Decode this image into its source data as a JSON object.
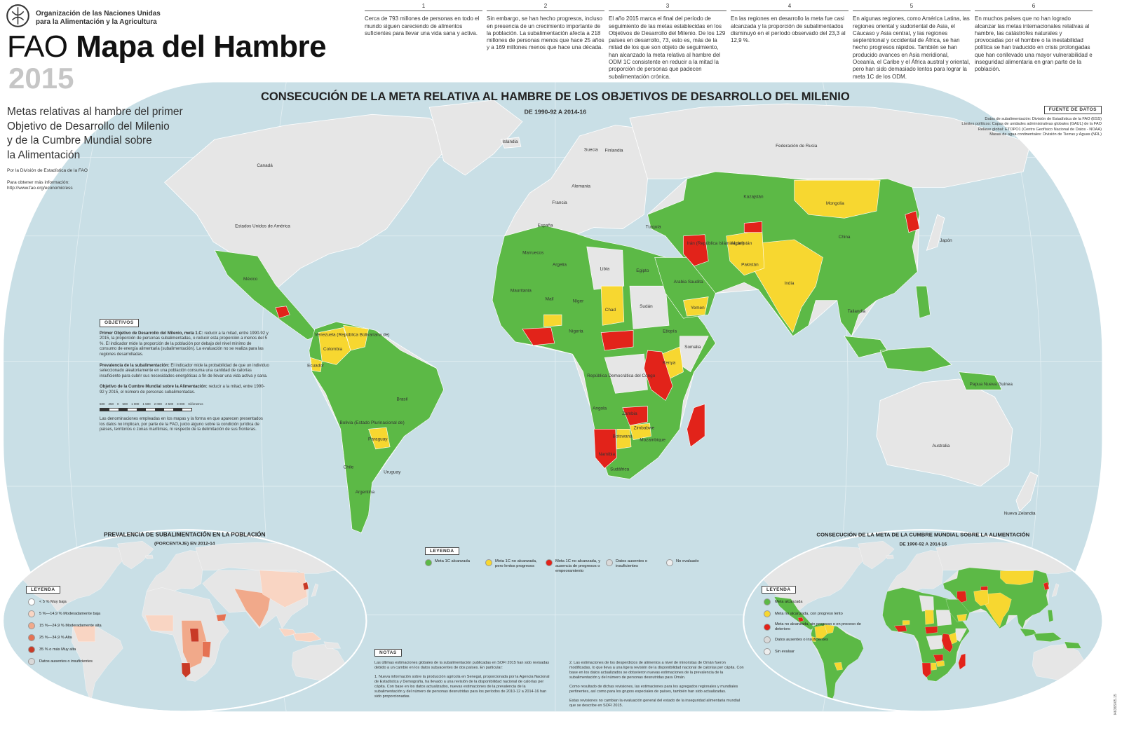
{
  "header": {
    "org_line1": "Organización de las Naciones Unidas",
    "org_line2": "para la Alimentación y la Agricultura",
    "title_prefix": "FAO",
    "title": "Mapa del Hambre",
    "year": "2015",
    "subtitle_lines": [
      "Metas relativas al hambre del primer",
      "Objetivo de Desarrollo del Milenio",
      "y de la Cumbre Mundial sobre",
      "la Alimentación"
    ],
    "by_line": "Por la División de Estadística de la FAO",
    "info_label": "Para obtener más información:",
    "info_url": "http://www.fao.org/economic/ess"
  },
  "key_points": [
    {
      "number": "1",
      "text": "Cerca de 793 millones de personas en todo el mundo siguen careciendo de alimentos suficientes para llevar una vida sana y activa."
    },
    {
      "number": "2",
      "text": "Sin embargo, se han hecho progresos, incluso en presencia de un crecimiento importante de la población. La subalimentación afecta a 218 millones de personas menos que hace 25 años y a 169 millones menos que hace una década."
    },
    {
      "number": "3",
      "text": "El año 2015 marca el final del período de seguimiento de las metas establecidas en los Objetivos de Desarrollo del Milenio. De los 129 países en desarrollo, 73, esto es, más de la mitad de los que son objeto de seguimiento, han alcanzado la meta relativa al hambre del ODM 1C consistente en reducir a la mitad la proporción de personas que padecen subalimentación crónica."
    },
    {
      "number": "4",
      "text": "En las regiones en desarrollo la meta fue casi alcanzada y la proporción de subalimentados disminuyó en el período observado del 23,3 al 12,9 %."
    },
    {
      "number": "5",
      "text": "En algunas regiones, como América Latina, las regiones oriental y sudoriental de Asia, el Cáucaso y Asia central, y las regiones septentrional y occidental de África, se han hecho progresos rápidos. También se han producido avances en Asia meridional, Oceanía, el Caribe y el África austral y oriental, pero han sido demasiado lentos para lograr la meta 1C de los ODM."
    },
    {
      "number": "6",
      "text": "En muchos países que no han logrado alcanzar las metas internacionales relativas al hambre, las catástrofes naturales y provocadas por el hombre o la inestabilidad política se han traducido en crisis prolongadas que han conllevado una mayor vulnerabilidad e inseguridad alimentaria en gran parte de la población."
    }
  ],
  "main_map": {
    "title": "CONSECUCIÓN DE LA META RELATIVA AL HAMBRE DE LOS OBJETIVOS DE DESARROLLO DEL MILENIO",
    "subtitle": "DE 1990-92 A 2014-16",
    "sources_heading": "FUENTE DE DATOS",
    "sources": [
      "Datos de subalimentación: División de Estadística de la FAO (ESS)",
      "Límites políticos: Capas de unidades administrativas globales (GAUL) de la FAO",
      "Relieve global: ETOPO1 (Centro Geofísico Nacional de Datos - NOAA)",
      "Masas de agua continentales: División de Tierras y Aguas (NRL)"
    ],
    "legend_heading": "LEYENDA",
    "legend": [
      {
        "label": "Meta 1C alcanzada",
        "color": "#5cb946"
      },
      {
        "label": "Meta 1C no alcanzada, pero lentos progresos",
        "color": "#f7d730"
      },
      {
        "label": "Meta 1C no alcanzada, y ausencia de progresos o empeoramiento",
        "color": "#e2231a"
      },
      {
        "label": "Datos ausentes o insuficientes",
        "color": "#d9d9d9"
      },
      {
        "label": "No evaluado",
        "color": "#eeeeee"
      }
    ],
    "country_labels": [
      "Canadá",
      "Estados Unidos de América",
      "México",
      "Colombia",
      "Ecuador",
      "Brasil",
      "Bolivia (Estado Plurinacional de)",
      "Paraguay",
      "Uruguay",
      "Argentina",
      "Chile",
      "Venezuela (República Bolivariana de)",
      "Islandia",
      "Suecia",
      "Finlandia",
      "Federación de Rusia",
      "Kazajstán",
      "Mongolia",
      "China",
      "India",
      "Pakistán",
      "Afganistán",
      "Turquía",
      "Irán (República Islámica del)",
      "Arabia Saudita",
      "Egipto",
      "Libia",
      "Argelia",
      "Malí",
      "Níger",
      "Chad",
      "Sudán",
      "Etiopía",
      "Nigeria",
      "Kenya",
      "República Democrática del Congo",
      "Angola",
      "Zambia",
      "Namibia",
      "Botswana",
      "Sudáfrica",
      "Mozambique",
      "Zimbabwe",
      "Australia",
      "Japón",
      "Papua Nueva Guinea",
      "Nueva Zelandia",
      "Mauritania",
      "Marruecos",
      "Yemen",
      "España",
      "Francia",
      "Alemania",
      "Somalia",
      "Tailandia"
    ]
  },
  "objectives": {
    "heading": "OBJETIVOS",
    "paragraphs": [
      {
        "term": "Primer Objetivo de Desarrollo del Milenio, meta 1.C:",
        "text": "reducir a la mitad, entre 1990-92 y 2015, la proporción de personas subalimentadas, o reducir esta proporción a menos del 5 %. El indicador mide la proporción de la población por debajo del nivel mínimo de consumo de energía alimentaria (subalimentación). La evaluación no se realiza para las regiones desarrolladas."
      },
      {
        "term": "Prevalencia de la subalimentación:",
        "text": "El indicador mide la probabilidad de que un individuo seleccionado aleatoriamente en una población consuma una cantidad de calorías insuficiente para cubrir sus necesidades energéticas a fin de llevar una vida activa y sana."
      },
      {
        "term": "Objetivo de la Cumbre Mundial sobre la Alimentación:",
        "text": "reducir a la mitad, entre 1990-92 y 2015, el número de personas subalimentadas."
      }
    ],
    "scale_labels": [
      "500",
      "250",
      "0",
      "500",
      "1 000",
      "1 500",
      "2 000",
      "2 500",
      "3 000"
    ],
    "scale_unit": "Kilómetros",
    "disclaimer": "Las denominaciones empleadas en los mapas y la forma en que aparecen presentados los datos no implican, por parte de la FAO, juicio alguno sobre la condición jurídica de países, territorios o zonas marítimas, ni respecto de la delimitación de sus fronteras."
  },
  "inset_prevalence": {
    "title": "PREVALENCIA DE SUBALIMENTACIÓN EN LA POBLACIÓN",
    "subtitle": "(PORCENTAJE) EN 2012-14",
    "legend_heading": "LEYENDA",
    "legend": [
      {
        "label": "< 5 % Muy baja",
        "color": "#ffffff"
      },
      {
        "label": "5 %—14,9 % Moderadamente baja",
        "color": "#f9d5c3"
      },
      {
        "label": "15 %—24,9 % Moderadamente alta",
        "color": "#f1a98a"
      },
      {
        "label": "25 %—34,9 % Alta",
        "color": "#e57253"
      },
      {
        "label": "35 % o más Muy alta",
        "color": "#c93a26"
      },
      {
        "label": "Datos ausentes o insuficientes",
        "color": "#d9d9d9"
      }
    ]
  },
  "inset_wfs": {
    "title": "CONSECUCIÓN DE LA META DE LA CUMBRE MUNDIAL SOBRE LA ALIMENTACIÓN",
    "subtitle": "DE 1990-92 A 2014-16",
    "legend_heading": "LEYENDA",
    "legend": [
      {
        "label": "Meta alcanzada",
        "color": "#5cb946"
      },
      {
        "label": "Meta no alcanzada, con progreso lento",
        "color": "#f7d730"
      },
      {
        "label": "Meta no alcanzada, sin progreso o en proceso de deterioro",
        "color": "#e2231a"
      },
      {
        "label": "Datos ausentes o insuficientes",
        "color": "#d9d9d9"
      },
      {
        "label": "Sin evaluar",
        "color": "#eeeeee"
      }
    ]
  },
  "notes": {
    "heading": "NOTAS",
    "paragraphs": [
      "Las últimas estimaciones globales de la subalimentación publicadas en SOFI 2015 han sido revisadas debido a un cambio en los datos subyacentes de dos países. En particular:",
      "1. Nueva información sobre la producción agrícola en Senegal, proporcionada por la Agencia Nacional de Estadística y Demografía, ha llevado a una revisión de la disponibilidad nacional de calorías per cápita. Con base en los datos actualizados, nuevas estimaciones de la prevalencia de la subalimentación y del número de personas desnutridas para los períodos de 2010-12 a 2014-16 han sido proporcionadas.",
      "2. Las estimaciones de los desperdicios de alimentos a nivel de minoristas de Omán fueron modificadas, lo que lleva a una ligera revisión de la disponibilidad nacional de calorías per cápita. Con base en los datos actualizados se obtuvieron nuevas estimaciones de la prevalencia de la subalimentación y del número de personas desnutridas para Omán.",
      "Como resultado de dichas revisiones, las estimaciones para los agregados regionales y mundiales pertinentes, así como para los grupos especiales de países, también han sido actualizadas.",
      "Estas revisiones no cambian la evaluación general del estado de la inseguridad alimentaria mundial que se describe en SOFI 2015."
    ]
  },
  "document_code": "I4636S/05.15"
}
